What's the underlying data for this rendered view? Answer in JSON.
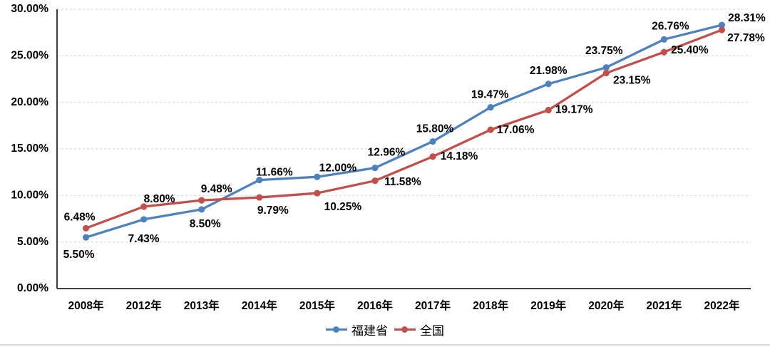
{
  "page": {
    "background": "#ffffff"
  },
  "chart_data": {
    "type": "line",
    "title": "",
    "categories": [
      "2008年",
      "2012年",
      "2013年",
      "2014年",
      "2015年",
      "2016年",
      "2017年",
      "2018年",
      "2019年",
      "2020年",
      "2021年",
      "2022年"
    ],
    "series": [
      {
        "name": "福建省",
        "color": "#4F81BD",
        "values": [
          5.5,
          7.43,
          8.5,
          11.66,
          12.0,
          12.96,
          15.8,
          19.47,
          21.98,
          23.75,
          26.76,
          28.31
        ],
        "labels": [
          "5.50%",
          "7.43%",
          "8.50%",
          "11.66%",
          "12.00%",
          "12.96%",
          "15.80%",
          "19.47%",
          "21.98%",
          "23.75%",
          "26.76%",
          "28.31%"
        ],
        "label_offsets": [
          [
            -10,
            25
          ],
          [
            0,
            28
          ],
          [
            5,
            21
          ],
          [
            21,
            -10
          ],
          [
            29,
            -12
          ],
          [
            16,
            -21
          ],
          [
            3,
            -17
          ],
          [
            -1,
            -17
          ],
          [
            0,
            -18
          ],
          [
            -3,
            -23
          ],
          [
            9,
            -18
          ],
          [
            35,
            -9
          ]
        ]
      },
      {
        "name": "全国",
        "color": "#C0504D",
        "values": [
          6.48,
          8.8,
          9.48,
          9.79,
          10.25,
          11.58,
          14.18,
          17.06,
          19.17,
          23.15,
          25.4,
          27.78
        ],
        "labels": [
          "6.48%",
          "8.80%",
          "9.48%",
          "9.79%",
          "10.25%",
          "11.58%",
          "14.18%",
          "17.06%",
          "19.17%",
          "23.15%",
          "25.40%",
          "27.78%"
        ],
        "label_offsets": [
          [
            -9,
            -15
          ],
          [
            22,
            -10
          ],
          [
            21,
            -15
          ],
          [
            19,
            19
          ],
          [
            36,
            20
          ],
          [
            39,
            2
          ],
          [
            37,
            0
          ],
          [
            35,
            1
          ],
          [
            36,
            0
          ],
          [
            36,
            11
          ],
          [
            36,
            -2
          ],
          [
            34,
            12
          ]
        ]
      }
    ],
    "y_axis": {
      "min": 0,
      "max": 30,
      "step": 5,
      "tick_labels": [
        "0.00%",
        "5.00%",
        "10.00%",
        "15.00%",
        "20.00%",
        "25.00%",
        "30.00%"
      ]
    },
    "grid": {
      "style": "dashed",
      "color": "#d9d9d9"
    },
    "axis_color": "#3f3f3f",
    "data_label_color": "#000000",
    "legend": {
      "position": "bottom"
    }
  }
}
